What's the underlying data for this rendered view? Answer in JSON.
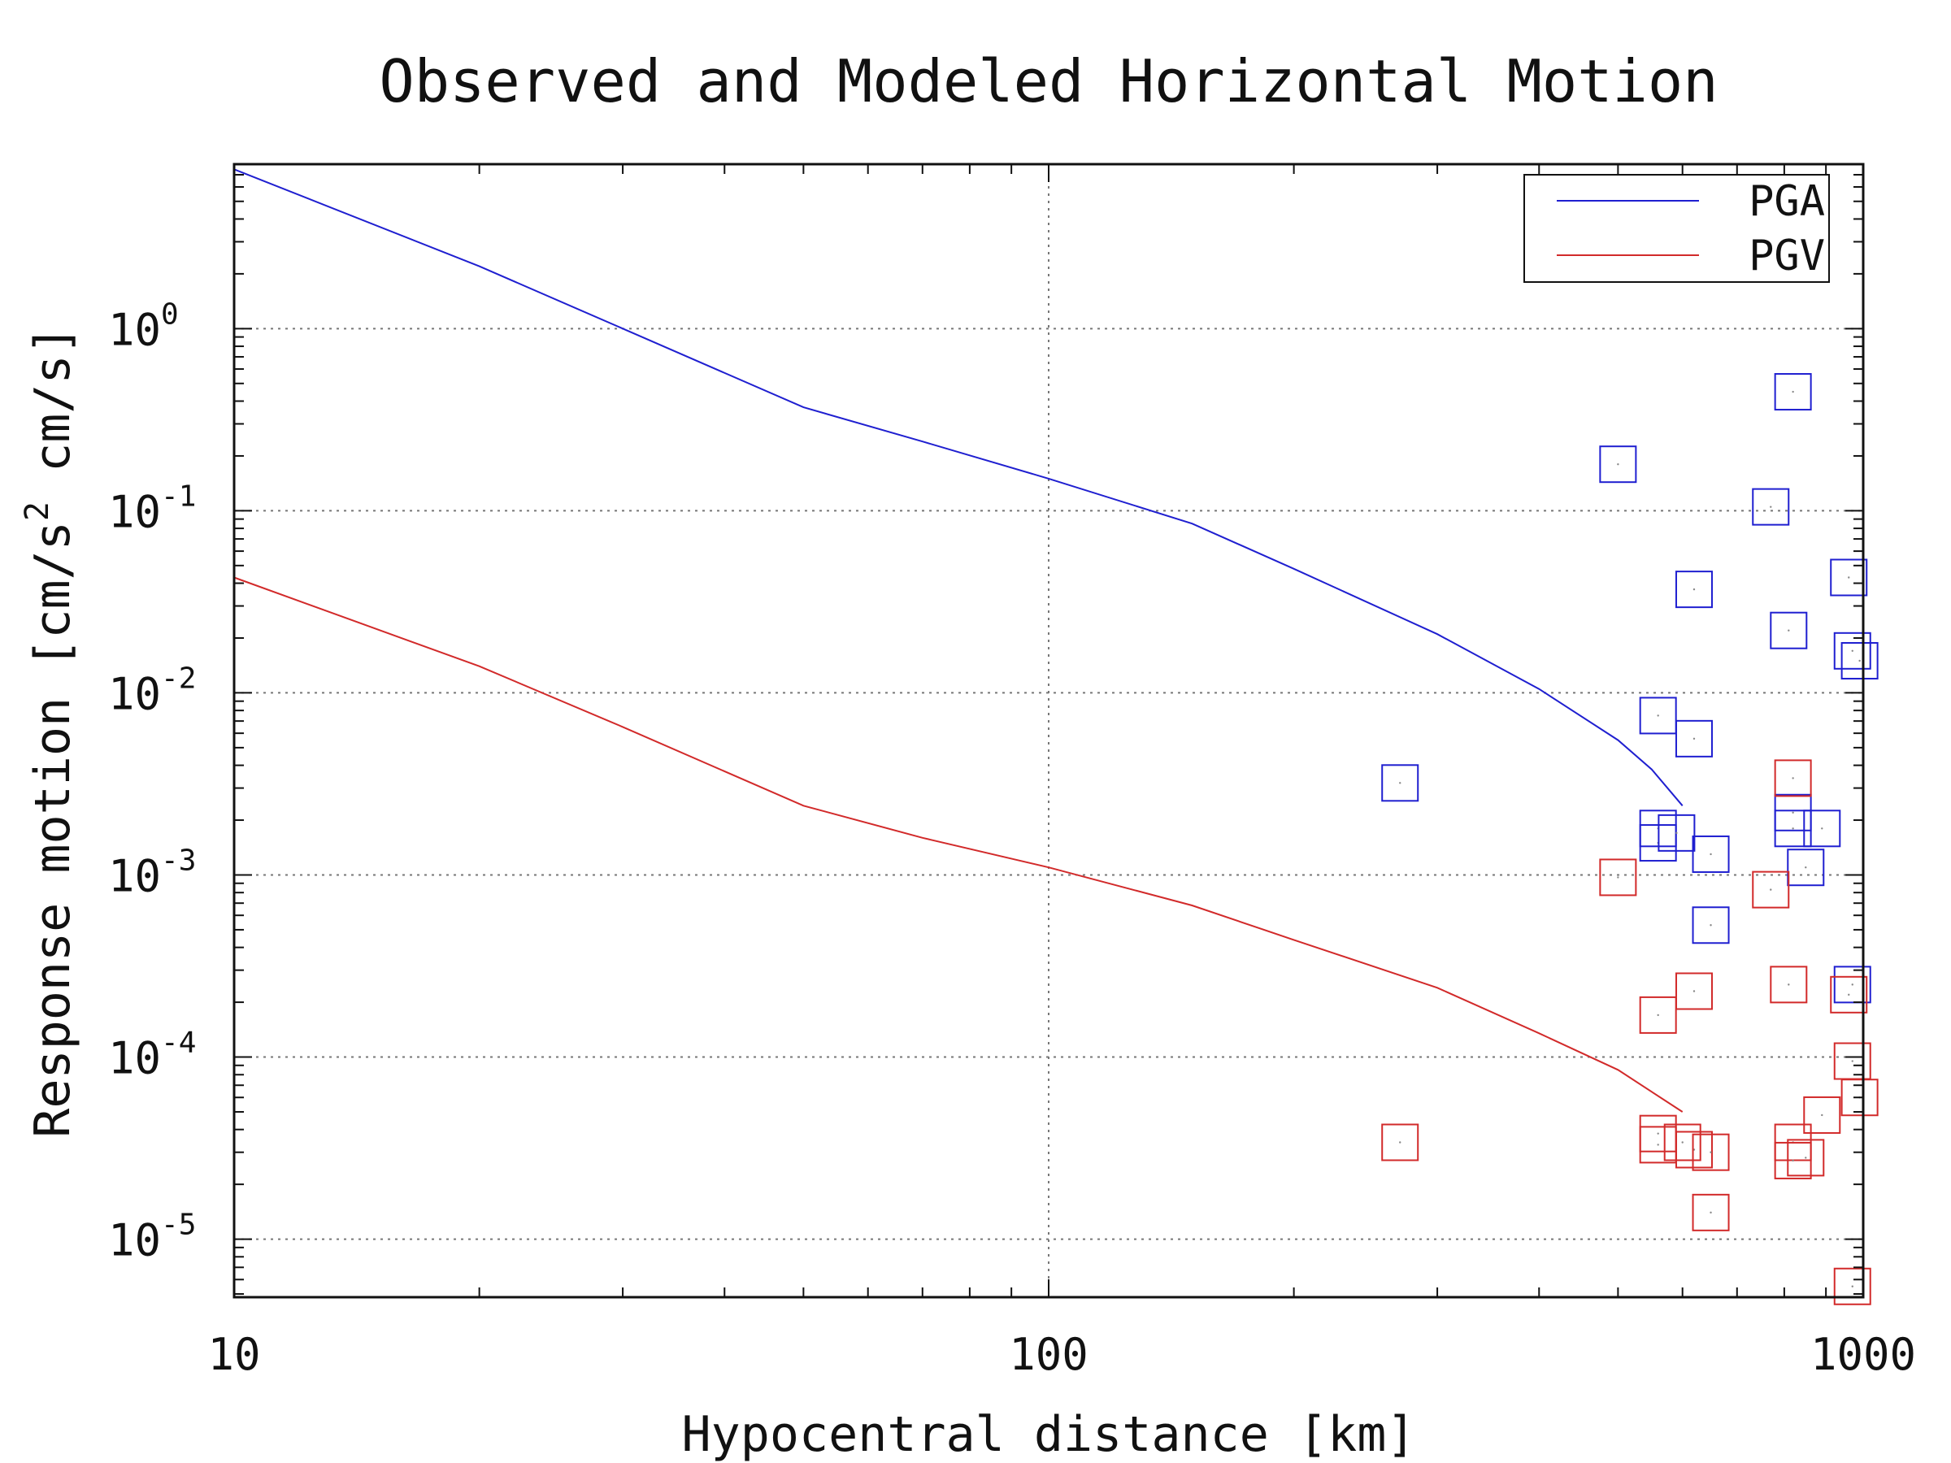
{
  "chart_data": {
    "type": "scatter",
    "title": "Observed and Modeled Horizontal Motion",
    "xlabel": "Hypocentral distance [km]",
    "ylabel": "Response motion [cm/s",
    "ylabel_sup": "2",
    "ylabel_tail": " cm/s]",
    "xscale": "log",
    "yscale": "log",
    "xlim": [
      10,
      1000
    ],
    "ylim": [
      4.8e-06,
      8
    ],
    "grid": true,
    "legend_position": "top-right",
    "x_ticks": [
      {
        "value": 10,
        "label": "10"
      },
      {
        "value": 100,
        "label": "100"
      },
      {
        "value": 1000,
        "label": "1000"
      }
    ],
    "y_ticks": [
      {
        "value": 1,
        "base": "10",
        "exp": "0"
      },
      {
        "value": 0.1,
        "base": "10",
        "exp": "-1"
      },
      {
        "value": 0.01,
        "base": "10",
        "exp": "-2"
      },
      {
        "value": 0.001,
        "base": "10",
        "exp": "-3"
      },
      {
        "value": 0.0001,
        "base": "10",
        "exp": "-4"
      },
      {
        "value": 1e-05,
        "base": "10",
        "exp": "-5"
      }
    ],
    "series": [
      {
        "name": "PGA",
        "color": "#1f1fd0",
        "model_line": [
          [
            10,
            7.5
          ],
          [
            20,
            2.2
          ],
          [
            30,
            1.0
          ],
          [
            50,
            0.37
          ],
          [
            70,
            0.24
          ],
          [
            100,
            0.15
          ],
          [
            150,
            0.085
          ],
          [
            200,
            0.048
          ],
          [
            300,
            0.021
          ],
          [
            400,
            0.0105
          ],
          [
            500,
            0.0055
          ],
          [
            550,
            0.0038
          ],
          [
            600,
            0.0024
          ]
        ],
        "observed": [
          [
            270,
            0.0032
          ],
          [
            500,
            0.18
          ],
          [
            560,
            0.0075
          ],
          [
            560,
            0.0018
          ],
          [
            560,
            0.0015
          ],
          [
            590,
            0.0017
          ],
          [
            620,
            0.037
          ],
          [
            620,
            0.0056
          ],
          [
            650,
            0.0013
          ],
          [
            650,
            0.00053
          ],
          [
            770,
            0.105
          ],
          [
            820,
            0.45
          ],
          [
            810,
            0.022
          ],
          [
            820,
            0.0022
          ],
          [
            820,
            0.0018
          ],
          [
            850,
            0.0011
          ],
          [
            890,
            0.0018
          ],
          [
            960,
            0.043
          ],
          [
            970,
            0.017
          ],
          [
            990,
            0.015
          ],
          [
            970,
            0.00025
          ]
        ]
      },
      {
        "name": "PGV",
        "color": "#d22a2a",
        "model_line": [
          [
            10,
            0.043
          ],
          [
            20,
            0.014
          ],
          [
            30,
            0.0065
          ],
          [
            50,
            0.0024
          ],
          [
            70,
            0.0016
          ],
          [
            100,
            0.0011
          ],
          [
            150,
            0.00068
          ],
          [
            200,
            0.00044
          ],
          [
            300,
            0.00024
          ],
          [
            400,
            0.000135
          ],
          [
            500,
            8.5e-05
          ],
          [
            600,
            5e-05
          ]
        ],
        "observed": [
          [
            270,
            3.4e-05
          ],
          [
            500,
            0.00097
          ],
          [
            560,
            0.00017
          ],
          [
            560,
            3.8e-05
          ],
          [
            560,
            3.3e-05
          ],
          [
            600,
            3.4e-05
          ],
          [
            620,
            0.00023
          ],
          [
            620,
            3.1e-05
          ],
          [
            650,
            3e-05
          ],
          [
            650,
            1.4e-05
          ],
          [
            770,
            0.00083
          ],
          [
            810,
            0.00025
          ],
          [
            820,
            0.0034
          ],
          [
            820,
            3.4e-05
          ],
          [
            820,
            2.7e-05
          ],
          [
            850,
            2.8e-05
          ],
          [
            890,
            4.8e-05
          ],
          [
            960,
            0.00022
          ],
          [
            970,
            9.5e-05
          ],
          [
            990,
            6e-05
          ],
          [
            970,
            5.5e-06
          ]
        ]
      }
    ]
  }
}
